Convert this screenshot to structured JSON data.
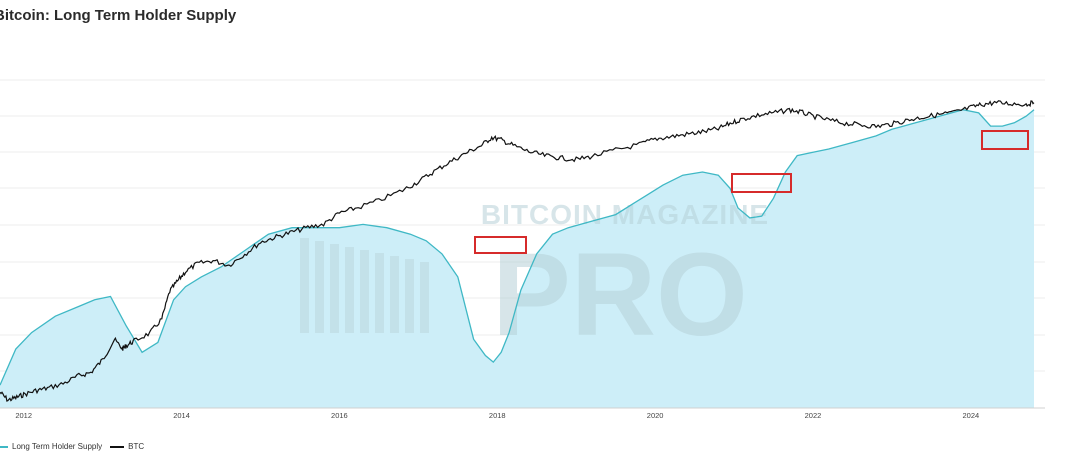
{
  "chart_data": {
    "type": "area",
    "title": "Bitcoin: Long Term Holder Supply",
    "x_ticks": [
      "2012",
      "2014",
      "2016",
      "2018",
      "2020",
      "2022",
      "2024"
    ],
    "xlim": [
      2011.7,
      2024.8
    ],
    "grid": "horizontal",
    "legend_position": "bottom-left",
    "watermark": [
      "BITCOIN MAGAZINE",
      "PRO"
    ],
    "series": [
      {
        "name": "Long Term Holder Supply",
        "color": "#3fb8c5",
        "fill": "#cdeef8",
        "style": "area",
        "x": [
          2011.7,
          2011.9,
          2012.1,
          2012.4,
          2012.7,
          2012.9,
          2013.1,
          2013.3,
          2013.5,
          2013.7,
          2013.9,
          2014.05,
          2014.25,
          2014.5,
          2014.8,
          2015.1,
          2015.4,
          2015.7,
          2016.0,
          2016.3,
          2016.6,
          2016.9,
          2017.1,
          2017.3,
          2017.5,
          2017.7,
          2017.85,
          2017.95,
          2018.05,
          2018.15,
          2018.3,
          2018.5,
          2018.7,
          2018.9,
          2019.2,
          2019.5,
          2019.7,
          2019.9,
          2020.1,
          2020.35,
          2020.6,
          2020.8,
          2020.95,
          2021.05,
          2021.2,
          2021.35,
          2021.5,
          2021.65,
          2021.8,
          2022.0,
          2022.2,
          2022.5,
          2022.8,
          2023.0,
          2023.3,
          2023.6,
          2023.9,
          2024.1,
          2024.25,
          2024.4,
          2024.55,
          2024.7,
          2024.8
        ],
        "y": [
          6.2,
          7.3,
          7.8,
          8.3,
          8.6,
          8.8,
          8.9,
          8.0,
          7.2,
          7.5,
          8.8,
          9.2,
          9.5,
          9.8,
          10.3,
          10.8,
          11.0,
          11.0,
          11.0,
          11.1,
          11.0,
          10.8,
          10.6,
          10.2,
          9.5,
          7.6,
          7.1,
          6.9,
          7.2,
          7.8,
          9.1,
          10.2,
          10.8,
          11.0,
          11.2,
          11.4,
          11.7,
          12.0,
          12.3,
          12.6,
          12.7,
          12.6,
          12.2,
          11.6,
          11.3,
          11.35,
          11.9,
          12.7,
          13.2,
          13.3,
          13.4,
          13.6,
          13.8,
          14.0,
          14.2,
          14.4,
          14.6,
          14.5,
          14.1,
          14.1,
          14.2,
          14.4,
          14.6
        ]
      },
      {
        "name": "BTC",
        "color": "#111111",
        "style": "line",
        "x": [
          2011.7,
          2011.8,
          2011.9,
          2012.0,
          2012.15,
          2012.3,
          2012.5,
          2012.7,
          2012.85,
          2013.0,
          2013.15,
          2013.25,
          2013.3,
          2013.4,
          2013.6,
          2013.75,
          2013.85,
          2013.95,
          2014.05,
          2014.2,
          2014.4,
          2014.6,
          2014.8,
          2015.0,
          2015.2,
          2015.4,
          2015.6,
          2015.8,
          2016.0,
          2016.2,
          2016.5,
          2016.8,
          2017.0,
          2017.2,
          2017.4,
          2017.6,
          2017.8,
          2017.93,
          2018.05,
          2018.2,
          2018.4,
          2018.6,
          2018.8,
          2019.0,
          2019.2,
          2019.5,
          2019.8,
          2020.0,
          2020.2,
          2020.4,
          2020.6,
          2020.8,
          2020.95,
          2021.1,
          2021.3,
          2021.5,
          2021.7,
          2021.85,
          2022.0,
          2022.2,
          2022.4,
          2022.6,
          2022.8,
          2023.0,
          2023.2,
          2023.4,
          2023.6,
          2023.8,
          2024.0,
          2024.15,
          2024.3,
          2024.5,
          2024.7,
          2024.8
        ],
        "y": [
          6.5,
          5.5,
          5.8,
          6.2,
          6.7,
          7.0,
          7.6,
          8.6,
          9.0,
          10.6,
          13.2,
          12.0,
          12.4,
          13.0,
          14.0,
          15.8,
          19.3,
          20.6,
          21.8,
          22.8,
          23.2,
          22.6,
          24.0,
          25.5,
          26.2,
          26.8,
          27.4,
          27.8,
          29.2,
          29.8,
          30.8,
          32.1,
          33.2,
          34.5,
          35.7,
          36.8,
          37.8,
          38.8,
          38.5,
          37.8,
          37.0,
          36.5,
          36.2,
          36.0,
          36.4,
          37.2,
          37.9,
          38.6,
          38.9,
          39.2,
          39.5,
          39.9,
          40.6,
          41.1,
          41.6,
          41.9,
          42.3,
          42.0,
          41.5,
          41.0,
          40.6,
          40.4,
          40.2,
          40.5,
          41.0,
          41.4,
          41.7,
          42.0,
          42.6,
          43.0,
          43.2,
          43.1,
          43.0,
          43.2
        ]
      }
    ]
  },
  "legend": {
    "items": [
      {
        "label": "Long Term Holder Supply",
        "color": "#3fb8c5"
      },
      {
        "label": "BTC",
        "color": "#111111"
      }
    ]
  }
}
